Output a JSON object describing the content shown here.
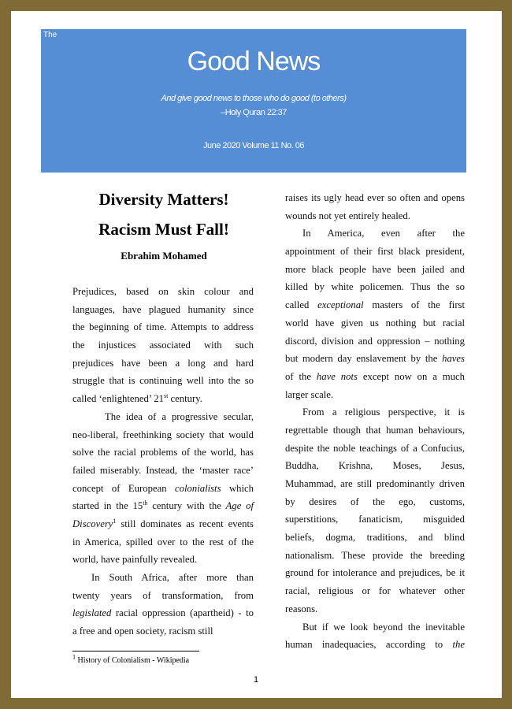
{
  "masthead": {
    "prefix": "The",
    "title": "Good News",
    "tagline": "And give good news to those who do good (to others)",
    "citation": "–Holy Quran 22:37",
    "issue": "June 2020 Volume 11 No. 06",
    "color": "#558ed5"
  },
  "article": {
    "title_line1": "Diversity Matters!",
    "title_line2": "Racism Must Fall!",
    "author": "Ebrahim Mohamed",
    "left_column": [
      {
        "indent": 0,
        "lines": [
          [
            [
              "Prejudices, based on skin colour and"
            ]
          ],
          [
            [
              "languages, have plagued humanity since"
            ]
          ],
          [
            [
              "the beginning of time. Attempts to address"
            ]
          ],
          [
            [
              "the injustices associated with such"
            ]
          ],
          [
            [
              "prejudices have been a long and hard"
            ]
          ],
          [
            [
              "struggle that is continuing well into the so"
            ]
          ],
          [
            [
              "called ‘enlightened’ 21"
            ],
            [
              "st",
              "sup"
            ],
            [
              " century."
            ]
          ]
        ]
      },
      {
        "indent": 41,
        "lines": [
          [
            [
              "The idea of a progressive secular,"
            ]
          ],
          [
            [
              "neo-liberal, freethinking society that would"
            ]
          ],
          [
            [
              "solve the racial problems of the world, has"
            ]
          ],
          [
            [
              "failed miserably. Instead, the ‘master race’"
            ]
          ],
          [
            [
              "concept of European "
            ],
            [
              "colonialists",
              "i"
            ],
            [
              " which"
            ]
          ],
          [
            [
              "started in the 15"
            ],
            [
              "th",
              "sup"
            ],
            [
              " century with the "
            ],
            [
              "Age of",
              "i"
            ]
          ],
          [
            [
              "Discovery",
              "i"
            ],
            [
              "1",
              "sup"
            ],
            [
              " still dominates as recent events"
            ]
          ],
          [
            [
              "in America, spilled over to the rest of the"
            ]
          ],
          [
            [
              "world, have painfully revealed."
            ]
          ]
        ]
      },
      {
        "indent": 24,
        "lines": [
          [
            [
              "In South Africa, after more than"
            ]
          ],
          [
            [
              "twenty years of transformation, from"
            ]
          ],
          [
            [
              "legislated",
              "i"
            ],
            [
              " racial oppression (apartheid) - to"
            ]
          ],
          [
            [
              "a free and open society, racism still"
            ]
          ]
        ]
      }
    ],
    "right_column": [
      {
        "indent": 0,
        "lines": [
          [
            [
              "raises its ugly head ever so often and opens"
            ]
          ],
          [
            [
              "wounds not yet entirely healed."
            ]
          ]
        ]
      },
      {
        "indent": 22,
        "lines": [
          [
            [
              "In America, even after the"
            ]
          ],
          [
            [
              "appointment of their first black president,"
            ]
          ],
          [
            [
              "more black people have been jailed and"
            ]
          ],
          [
            [
              "killed by white policemen. Thus the so"
            ]
          ],
          [
            [
              "called "
            ],
            [
              "exceptional",
              "i"
            ],
            [
              " masters of the first"
            ]
          ],
          [
            [
              "world have given us nothing but racial"
            ]
          ],
          [
            [
              "discord, division and oppression – nothing"
            ]
          ],
          [
            [
              "but modern day enslavement by the "
            ],
            [
              "haves",
              "i"
            ]
          ],
          [
            [
              "of the "
            ],
            [
              "have nots",
              "i"
            ],
            [
              " except now on a much"
            ]
          ],
          [
            [
              "larger scale."
            ]
          ]
        ]
      },
      {
        "indent": 22,
        "lines": [
          [
            [
              "From a religious perspective, it is"
            ]
          ],
          [
            [
              "regrettable though that human behaviours,"
            ]
          ],
          [
            [
              "despite the noble teachings of a Confucius,"
            ]
          ],
          [
            [
              "Buddha, Krishna, Moses, Jesus,"
            ]
          ],
          [
            [
              "Muhammad, are still predominantly driven"
            ]
          ],
          [
            [
              "by desires of the ego, customs,"
            ]
          ],
          [
            [
              "superstitions, fanaticism, misguided"
            ]
          ],
          [
            [
              "beliefs, dogma, traditions, and blind"
            ]
          ],
          [
            [
              "nationalism. These provide the breeding"
            ]
          ],
          [
            [
              "ground for intolerance and prejudices, be it"
            ]
          ],
          [
            [
              "racial, religious or for whatever other"
            ]
          ],
          [
            [
              "reasons."
            ]
          ]
        ]
      },
      {
        "indent": 22,
        "continues": true,
        "lines": [
          [
            [
              "But if we look beyond the inevitable"
            ]
          ],
          [
            [
              "human inadequacies, according to "
            ],
            [
              "the",
              "i"
            ]
          ]
        ]
      }
    ],
    "footnote": {
      "number": "1",
      "text": " History of Colonialism - Wikipedia"
    }
  },
  "page_number": "1"
}
